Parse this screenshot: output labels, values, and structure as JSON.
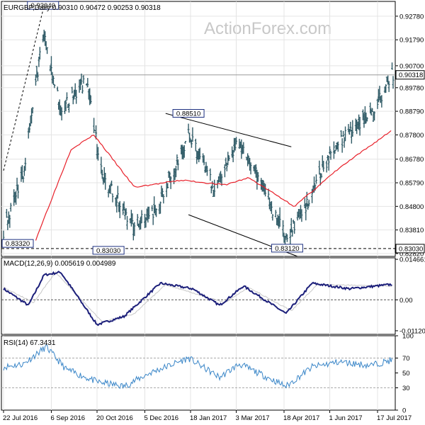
{
  "header": {
    "price_title": "EURGBP,Daily  0.90310 0.90472 0.90253 0.90318",
    "macd_title": "MACD(12,26,9) 0.005619 0.004989",
    "rsi_title": "RSI(14) 67.3431",
    "watermark": "ActionForex.com"
  },
  "colors": {
    "bars": "#2f5a66",
    "ma": "#e8202a",
    "macd": "#1c1f7a",
    "signal": "#c8c8c8",
    "rsi": "#3a86c8",
    "grid": "#e4e4e4",
    "annotation_box": "#1c2f80"
  },
  "chart_data": [
    {
      "type": "ohlc",
      "panel": "price",
      "ylim": [
        0.827,
        0.934
      ],
      "yticks": [
        "0.92780",
        "0.91790",
        "0.90700",
        "0.89780",
        "0.88790",
        "0.87800",
        "0.86780",
        "0.85790",
        "0.84800",
        "0.83810",
        "0.82820"
      ],
      "current_price": "0.90318",
      "support_level": "0.83030",
      "annotations": [
        {
          "label": "0.93040",
          "x": "2016-08-29",
          "y": 0.9304
        },
        {
          "label": "0.88510",
          "x": "2017-01-16",
          "y": 0.8851
        },
        {
          "label": "0.83320",
          "x": "2016-07-27",
          "y": 0.8332
        },
        {
          "label": "0.83030",
          "x": "2016-10-31",
          "y": 0.8303
        },
        {
          "label": "0.83120",
          "x": "2017-04-21",
          "y": 0.8312
        }
      ],
      "key_points": [
        {
          "date": "2016-07-22",
          "close": 0.838
        },
        {
          "date": "2016-08-10",
          "close": 0.862
        },
        {
          "date": "2016-08-29",
          "close": 0.92
        },
        {
          "date": "2016-09-15",
          "close": 0.889
        },
        {
          "date": "2016-10-10",
          "close": 0.9
        },
        {
          "date": "2016-10-25",
          "close": 0.86
        },
        {
          "date": "2016-11-25",
          "close": 0.84
        },
        {
          "date": "2016-12-15",
          "close": 0.846
        },
        {
          "date": "2017-01-16",
          "close": 0.878
        },
        {
          "date": "2017-02-10",
          "close": 0.855
        },
        {
          "date": "2017-03-06",
          "close": 0.875
        },
        {
          "date": "2017-03-25",
          "close": 0.86
        },
        {
          "date": "2017-04-20",
          "close": 0.834
        },
        {
          "date": "2017-05-05",
          "close": 0.845
        },
        {
          "date": "2017-06-01",
          "close": 0.87
        },
        {
          "date": "2017-06-20",
          "close": 0.88
        },
        {
          "date": "2017-07-10",
          "close": 0.886
        },
        {
          "date": "2017-07-31",
          "close": 0.9032
        }
      ],
      "moving_average": [
        {
          "date": "2016-08-22",
          "y": 0.834
        },
        {
          "date": "2016-09-25",
          "y": 0.872
        },
        {
          "date": "2016-10-17",
          "y": 0.878
        },
        {
          "date": "2016-11-25",
          "y": 0.856
        },
        {
          "date": "2017-01-10",
          "y": 0.859
        },
        {
          "date": "2017-02-20",
          "y": 0.857
        },
        {
          "date": "2017-03-15",
          "y": 0.86
        },
        {
          "date": "2017-04-28",
          "y": 0.848
        },
        {
          "date": "2017-06-10",
          "y": 0.864
        },
        {
          "date": "2017-07-31",
          "y": 0.88
        }
      ]
    },
    {
      "type": "line",
      "panel": "macd",
      "ylim": [
        -0.0125,
        0.0152
      ],
      "yticks": [
        "0.014661",
        "0.00",
        "-0.011202"
      ],
      "series": [
        {
          "name": "MACD",
          "points": [
            {
              "date": "2016-07-22",
              "y": 0.004
            },
            {
              "date": "2016-08-15",
              "y": -0.002
            },
            {
              "date": "2016-08-30",
              "y": 0.009
            },
            {
              "date": "2016-09-15",
              "y": 0.01
            },
            {
              "date": "2016-10-20",
              "y": -0.009
            },
            {
              "date": "2016-11-15",
              "y": -0.006
            },
            {
              "date": "2016-12-20",
              "y": 0.006
            },
            {
              "date": "2017-01-20",
              "y": 0.004
            },
            {
              "date": "2017-02-15",
              "y": -0.002
            },
            {
              "date": "2017-03-10",
              "y": 0.005
            },
            {
              "date": "2017-04-20",
              "y": -0.005
            },
            {
              "date": "2017-05-15",
              "y": 0.006
            },
            {
              "date": "2017-06-20",
              "y": 0.004
            },
            {
              "date": "2017-07-31",
              "y": 0.0056
            }
          ]
        },
        {
          "name": "Signal",
          "points": [
            {
              "date": "2016-07-22",
              "y": 0.0045
            },
            {
              "date": "2016-08-20",
              "y": -0.001
            },
            {
              "date": "2016-09-10",
              "y": 0.01
            },
            {
              "date": "2016-10-25",
              "y": -0.008
            },
            {
              "date": "2016-11-25",
              "y": -0.005
            },
            {
              "date": "2016-12-25",
              "y": 0.0055
            },
            {
              "date": "2017-02-20",
              "y": -0.001
            },
            {
              "date": "2017-03-15",
              "y": 0.0045
            },
            {
              "date": "2017-04-25",
              "y": -0.004
            },
            {
              "date": "2017-05-20",
              "y": 0.0055
            },
            {
              "date": "2017-07-31",
              "y": 0.005
            }
          ]
        }
      ]
    },
    {
      "type": "line",
      "panel": "rsi",
      "ylim": [
        0,
        100
      ],
      "yticks": [
        "100",
        "70",
        "50",
        "30",
        "0"
      ],
      "levels": [
        70,
        30
      ],
      "series": [
        {
          "name": "RSI",
          "points": [
            {
              "date": "2016-07-22",
              "y": 58
            },
            {
              "date": "2016-08-10",
              "y": 62
            },
            {
              "date": "2016-09-01",
              "y": 85
            },
            {
              "date": "2016-09-20",
              "y": 55
            },
            {
              "date": "2016-10-20",
              "y": 38
            },
            {
              "date": "2016-11-15",
              "y": 32
            },
            {
              "date": "2016-12-10",
              "y": 50
            },
            {
              "date": "2017-01-16",
              "y": 70
            },
            {
              "date": "2017-02-15",
              "y": 44
            },
            {
              "date": "2017-03-06",
              "y": 62
            },
            {
              "date": "2017-04-20",
              "y": 32
            },
            {
              "date": "2017-05-15",
              "y": 58
            },
            {
              "date": "2017-06-10",
              "y": 65
            },
            {
              "date": "2017-07-10",
              "y": 60
            },
            {
              "date": "2017-07-31",
              "y": 67.3431
            }
          ]
        }
      ]
    }
  ],
  "x_axis": {
    "start": "2016-07-22",
    "end": "2017-08-01",
    "labels": [
      {
        "label": "22 Jul 2016",
        "date": "2016-07-22"
      },
      {
        "label": "6 Sep 2016",
        "date": "2016-09-06"
      },
      {
        "label": "20 Oct 2016",
        "date": "2016-10-20"
      },
      {
        "label": "5 Dec 2016",
        "date": "2016-12-05"
      },
      {
        "label": "18 Jan 2017",
        "date": "2017-01-18"
      },
      {
        "label": "3 Mar 2017",
        "date": "2017-03-03"
      },
      {
        "label": "18 Apr 2017",
        "date": "2017-04-18"
      },
      {
        "label": "1 Jun 2017",
        "date": "2017-06-01"
      },
      {
        "label": "17 Jul 2017",
        "date": "2017-07-17"
      }
    ]
  }
}
